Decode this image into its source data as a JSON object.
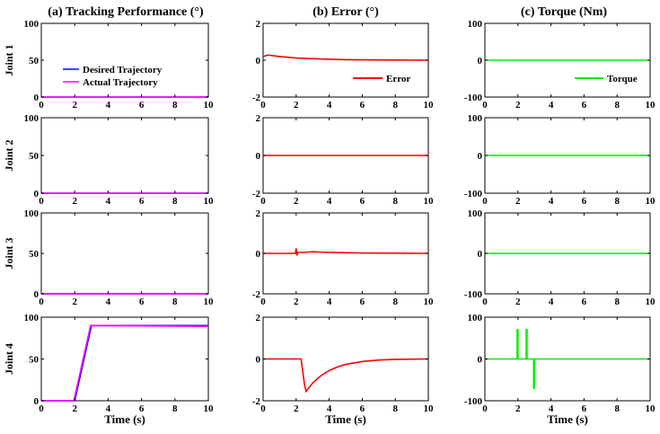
{
  "titles": {
    "a": "(a) Tracking Performance (°)",
    "b": "(b) Error (°)",
    "c": "(c) Torque (Nm)"
  },
  "xlabel": "Time (s)",
  "joint_labels": [
    "Joint 1",
    "Joint 2",
    "Joint 3",
    "Joint 4"
  ],
  "legend": {
    "desired": "Desired Trajectory",
    "actual": "Actual Trajectory",
    "error": "Error",
    "torque": "Torque"
  },
  "colors": {
    "desired": "#0000ff",
    "actual": "#ff00ff",
    "error": "#ff0000",
    "torque": "#00ee00"
  },
  "chart_data": [
    {
      "type": "line",
      "panel": "a",
      "row": 1,
      "ylabel": "Joint 1",
      "xlim": [
        0,
        10
      ],
      "ylim": [
        0,
        100
      ],
      "xticks": [
        0,
        2,
        4,
        6,
        8,
        10
      ],
      "yticks": [
        0,
        50,
        100
      ],
      "legend": "bottom-right",
      "series": [
        {
          "name": "Desired Trajectory",
          "color": "#0000ff",
          "x": [
            0,
            10
          ],
          "y": [
            0,
            0
          ]
        },
        {
          "name": "Actual Trajectory",
          "color": "#ff00ff",
          "x": [
            0,
            10
          ],
          "y": [
            0,
            0
          ]
        }
      ]
    },
    {
      "type": "line",
      "panel": "b",
      "row": 1,
      "xlim": [
        0,
        10
      ],
      "ylim": [
        -2,
        2
      ],
      "xticks": [
        0,
        2,
        4,
        6,
        8,
        10
      ],
      "yticks": [
        -2,
        0,
        2
      ],
      "legend": "bottom-right",
      "series": [
        {
          "name": "Error",
          "color": "#ff0000",
          "x": [
            0,
            0.3,
            1,
            2,
            3,
            4,
            5,
            6,
            8,
            10
          ],
          "y": [
            0.2,
            0.28,
            0.2,
            0.12,
            0.08,
            0.05,
            0.03,
            0.02,
            0.01,
            0.0
          ]
        }
      ]
    },
    {
      "type": "line",
      "panel": "c",
      "row": 1,
      "xlim": [
        0,
        10
      ],
      "ylim": [
        -100,
        100
      ],
      "xticks": [
        0,
        2,
        4,
        6,
        8,
        10
      ],
      "yticks": [
        -100,
        0,
        100
      ],
      "legend": "bottom-right",
      "series": [
        {
          "name": "Torque",
          "color": "#00ee00",
          "x": [
            0,
            10
          ],
          "y": [
            0,
            0
          ]
        }
      ]
    },
    {
      "type": "line",
      "panel": "a",
      "row": 2,
      "ylabel": "Joint 2",
      "xlim": [
        0,
        10
      ],
      "ylim": [
        0,
        100
      ],
      "xticks": [
        0,
        2,
        4,
        6,
        8,
        10
      ],
      "yticks": [
        0,
        50,
        100
      ],
      "series": [
        {
          "color": "#0000ff",
          "x": [
            0,
            10
          ],
          "y": [
            0,
            0
          ]
        },
        {
          "color": "#ff00ff",
          "x": [
            0,
            10
          ],
          "y": [
            0,
            0
          ]
        }
      ]
    },
    {
      "type": "line",
      "panel": "b",
      "row": 2,
      "xlim": [
        0,
        10
      ],
      "ylim": [
        -2,
        2
      ],
      "xticks": [
        0,
        2,
        4,
        6,
        8,
        10
      ],
      "yticks": [
        -2,
        0,
        2
      ],
      "series": [
        {
          "color": "#ff0000",
          "x": [
            0,
            10
          ],
          "y": [
            0,
            0
          ]
        }
      ]
    },
    {
      "type": "line",
      "panel": "c",
      "row": 2,
      "xlim": [
        0,
        10
      ],
      "ylim": [
        -100,
        100
      ],
      "xticks": [
        0,
        2,
        4,
        6,
        8,
        10
      ],
      "yticks": [
        -100,
        0,
        100
      ],
      "series": [
        {
          "color": "#00ee00",
          "x": [
            0,
            10
          ],
          "y": [
            0,
            0
          ]
        }
      ]
    },
    {
      "type": "line",
      "panel": "a",
      "row": 3,
      "ylabel": "Joint 3",
      "xlim": [
        0,
        10
      ],
      "ylim": [
        0,
        100
      ],
      "xticks": [
        0,
        2,
        4,
        6,
        8,
        10
      ],
      "yticks": [
        0,
        50,
        100
      ],
      "series": [
        {
          "color": "#0000ff",
          "x": [
            0,
            10
          ],
          "y": [
            0,
            0
          ]
        },
        {
          "color": "#ff00ff",
          "x": [
            0,
            10
          ],
          "y": [
            0,
            0
          ]
        }
      ]
    },
    {
      "type": "line",
      "panel": "b",
      "row": 3,
      "xlim": [
        0,
        10
      ],
      "ylim": [
        -2,
        2
      ],
      "xticks": [
        0,
        2,
        4,
        6,
        8,
        10
      ],
      "yticks": [
        -2,
        0,
        2
      ],
      "series": [
        {
          "color": "#ff0000",
          "x": [
            0,
            1.95,
            2.0,
            2.05,
            2.1,
            2.5,
            3,
            4,
            6,
            10
          ],
          "y": [
            0,
            0,
            0.25,
            -0.1,
            0.05,
            0.05,
            0.08,
            0.05,
            0.02,
            0.0
          ]
        }
      ]
    },
    {
      "type": "line",
      "panel": "c",
      "row": 3,
      "xlim": [
        0,
        10
      ],
      "ylim": [
        -100,
        100
      ],
      "xticks": [
        0,
        2,
        4,
        6,
        8,
        10
      ],
      "yticks": [
        -100,
        0,
        100
      ],
      "series": [
        {
          "color": "#00ee00",
          "x": [
            0,
            10
          ],
          "y": [
            0,
            0
          ]
        }
      ]
    },
    {
      "type": "line",
      "panel": "a",
      "row": 4,
      "ylabel": "Joint 4",
      "xlabel": "Time (s)",
      "xlim": [
        0,
        10
      ],
      "ylim": [
        0,
        100
      ],
      "xticks": [
        0,
        2,
        4,
        6,
        8,
        10
      ],
      "yticks": [
        0,
        50,
        100
      ],
      "series": [
        {
          "color": "#0000ff",
          "x": [
            0,
            2,
            3,
            10
          ],
          "y": [
            0,
            0,
            90,
            90
          ]
        },
        {
          "color": "#ff00ff",
          "x": [
            0,
            1.95,
            2.95,
            10
          ],
          "y": [
            0,
            0,
            90,
            89
          ]
        }
      ]
    },
    {
      "type": "line",
      "panel": "b",
      "row": 4,
      "xlabel": "Time (s)",
      "xlim": [
        0,
        10
      ],
      "ylim": [
        -2,
        2
      ],
      "xticks": [
        0,
        2,
        4,
        6,
        8,
        10
      ],
      "yticks": [
        -2,
        0,
        2
      ],
      "series": [
        {
          "color": "#ff0000",
          "x": [
            0,
            2.3,
            2.5,
            2.6,
            2.8,
            3,
            3.5,
            4,
            4.5,
            5,
            6,
            7,
            8,
            10
          ],
          "y": [
            0,
            0,
            -1.2,
            -1.55,
            -1.35,
            -1.15,
            -0.8,
            -0.55,
            -0.38,
            -0.26,
            -0.12,
            -0.05,
            -0.02,
            0
          ]
        }
      ]
    },
    {
      "type": "line",
      "panel": "c",
      "row": 4,
      "xlabel": "Time (s)",
      "xlim": [
        0,
        10
      ],
      "ylim": [
        -100,
        100
      ],
      "xticks": [
        0,
        2,
        4,
        6,
        8,
        10
      ],
      "yticks": [
        -100,
        0,
        100
      ],
      "series": [
        {
          "color": "#00ee00",
          "x": [
            0,
            1.95,
            1.95,
            2.0,
            2.0,
            2.5,
            2.5,
            2.55,
            2.55,
            2.95,
            2.95,
            3.0,
            3.0,
            10
          ],
          "y": [
            0,
            0,
            70,
            70,
            0,
            0,
            70,
            70,
            0,
            0,
            -70,
            -70,
            0,
            0
          ]
        }
      ]
    }
  ]
}
